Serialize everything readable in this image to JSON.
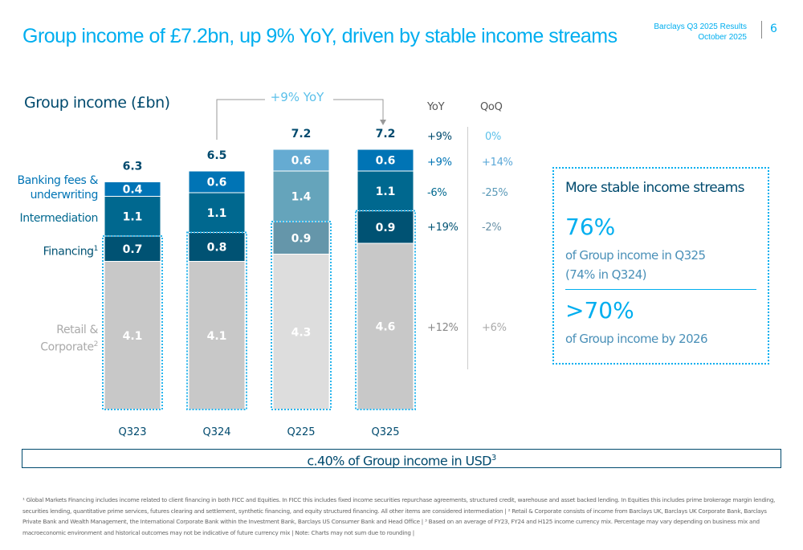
{
  "header": {
    "title": "Group income of £7.2bn, up 9% YoY, driven by stable income streams",
    "doc_title": "Barclays Q3 2025 Results",
    "doc_date": "October 2025",
    "page_number": "6"
  },
  "chart_data": {
    "type": "bar",
    "stacked": true,
    "title": "Group income (£bn)",
    "categories": [
      "Q323",
      "Q324",
      "Q225",
      "Q325"
    ],
    "series": [
      {
        "name": "Retail & Corporate",
        "values": [
          4.1,
          4.1,
          4.3,
          4.6
        ],
        "color": "#c8c8c8",
        "yoy": "+12%",
        "qoq": "+6%"
      },
      {
        "name": "Financing",
        "footnote": "1",
        "values": [
          0.7,
          0.8,
          0.9,
          0.9
        ],
        "color": "#005273",
        "yoy": "+19%",
        "qoq": "-2%"
      },
      {
        "name": "Intermediation",
        "values": [
          1.1,
          1.1,
          1.4,
          1.1
        ],
        "color": "#00688f",
        "yoy": "-6%",
        "qoq": "-25%"
      },
      {
        "name": "Banking fees & underwriting",
        "values": [
          0.4,
          0.6,
          0.6,
          0.6
        ],
        "color": "#0074b5",
        "yoy": "+9%",
        "qoq": "+14%"
      }
    ],
    "retail_label": "Retail &",
    "retail_label2": "Corporate",
    "retail_footnote": "2",
    "banking_label": "Banking fees &",
    "banking_label2": "underwriting",
    "totals": [
      6.3,
      6.5,
      7.2,
      7.2
    ],
    "total_yoy": "+9%",
    "total_qoq": "0%",
    "yoy_header": "YoY",
    "qoq_header": "QoQ",
    "annotation": "+9% YoY",
    "ylim": [
      0,
      7.5
    ],
    "grid": false,
    "legend": "left-labels"
  },
  "panel": {
    "title": "More stable income streams",
    "stat1": "76%",
    "stat1_text": "of Group income in Q325",
    "stat1_sub": "(74% in Q324)",
    "stat2": ">70%",
    "stat2_text": "of Group income by 2026"
  },
  "usd_banner": {
    "text": "c.40% of Group income in USD",
    "footnote": "3"
  },
  "footnote": "¹ Global Markets Financing includes income related to client financing in both FICC and Equities. In FICC this includes fixed income securities repurchase agreements, structured credit, warehouse and asset backed lending. In Equities this includes prime brokerage margin lending, securities lending, quantitative prime services, futures clearing and settlement, synthetic financing, and equity structured financing. All other items are considered intermediation | ² Retail & Corporate consists of income from Barclays UK, Barclays UK Corporate Bank, Barclays Private Bank and Wealth Management, the International Corporate Bank within the Investment Bank, Barclays US Consumer Bank and Head Office | ³ Based on an average of FY23, FY24 and H125 income currency mix. Percentage may vary depending on business mix and macroeconomic environment and historical outcomes may not be indicative of future currency mix | Note: Charts may not sum due to rounding |"
}
